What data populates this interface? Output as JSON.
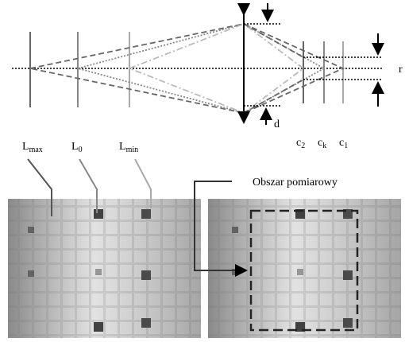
{
  "planes": [
    {
      "base": "L",
      "sub": "max"
    },
    {
      "base": "L",
      "sub": "0"
    },
    {
      "base": "L",
      "sub": "min"
    }
  ],
  "sensors": [
    {
      "base": "c",
      "sub": "2"
    },
    {
      "base": "c",
      "sub": "k"
    },
    {
      "base": "c",
      "sub": "1"
    }
  ],
  "lens_label": "d",
  "radius_label": "r",
  "region_label": "Obszar pomiarowy"
}
